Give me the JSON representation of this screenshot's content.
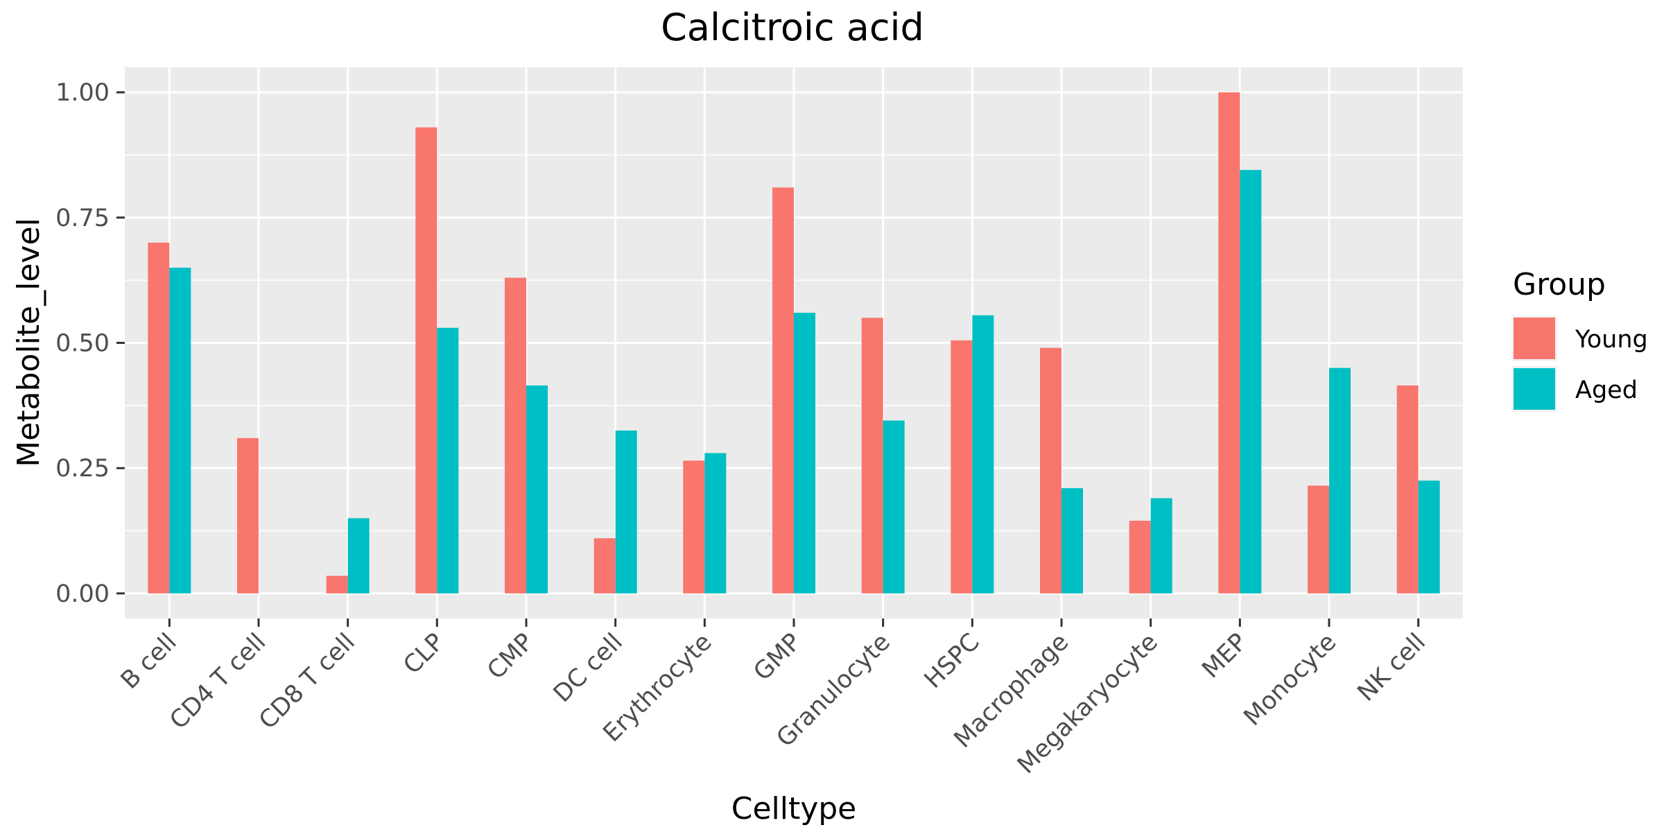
{
  "chart_data": {
    "type": "bar",
    "title": "Calcitroic acid",
    "xlabel": "Celltype",
    "ylabel": "Metabolite_level",
    "ylim": [
      -0.05,
      1.05
    ],
    "yticks": [
      0.0,
      0.25,
      0.5,
      0.75,
      1.0
    ],
    "ytick_labels": [
      "0.00",
      "0.25",
      "0.50",
      "0.75",
      "1.00"
    ],
    "grid": true,
    "legend_position": "right",
    "legend_title": "Group",
    "categories": [
      "B cell",
      "CD4 T cell",
      "CD8 T cell",
      "CLP",
      "CMP",
      "DC cell",
      "Erythrocyte",
      "GMP",
      "Granulocyte",
      "HSPC",
      "Macrophage",
      "Megakaryocyte",
      "MEP",
      "Monocyte",
      "NK cell"
    ],
    "series": [
      {
        "name": "Young",
        "color": "#F8766D",
        "values": [
          0.7,
          0.31,
          0.035,
          0.93,
          0.63,
          0.11,
          0.265,
          0.81,
          0.55,
          0.505,
          0.49,
          0.145,
          1.0,
          0.215,
          0.415
        ]
      },
      {
        "name": "Aged",
        "color": "#00BFC4",
        "values": [
          0.65,
          0.0,
          0.15,
          0.53,
          0.415,
          0.325,
          0.28,
          0.56,
          0.345,
          0.555,
          0.21,
          0.19,
          0.845,
          0.45,
          0.225
        ]
      }
    ]
  }
}
